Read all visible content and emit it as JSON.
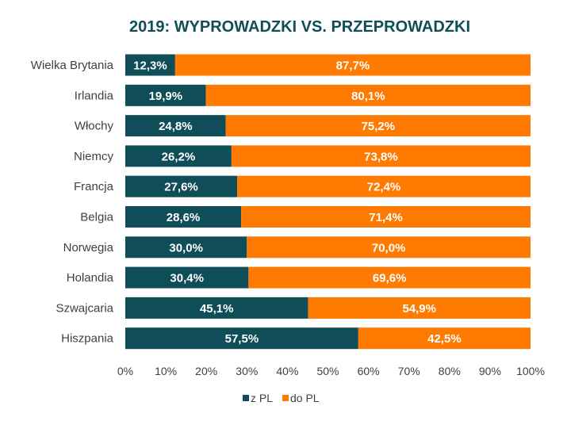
{
  "chart_data": {
    "type": "bar",
    "orientation": "horizontal",
    "stacked": "percent",
    "title": "2019: WYPROWADZKI VS. PRZEPROWADZKI",
    "categories": [
      "Wielka Brytania",
      "Irlandia",
      "Włochy",
      "Niemcy",
      "Francja",
      "Belgia",
      "Norwegia",
      "Holandia",
      "Szwajcaria",
      "Hiszpania"
    ],
    "series": [
      {
        "name": "z PL",
        "color": "#0f4d59",
        "values": [
          12.3,
          19.9,
          24.8,
          26.2,
          27.6,
          28.6,
          30.0,
          30.4,
          45.1,
          57.5
        ],
        "labels": [
          "12,3%",
          "19,9%",
          "24,8%",
          "26,2%",
          "27,6%",
          "28,6%",
          "30,0%",
          "30,4%",
          "45,1%",
          "57,5%"
        ]
      },
      {
        "name": "do PL",
        "color": "#ff7a00",
        "values": [
          87.7,
          80.1,
          75.2,
          73.8,
          72.4,
          71.4,
          70.0,
          69.6,
          54.9,
          42.5
        ],
        "labels": [
          "87,7%",
          "80,1%",
          "75,2%",
          "73,8%",
          "72,4%",
          "71,4%",
          "70,0%",
          "69,6%",
          "54,9%",
          "42,5%"
        ]
      }
    ],
    "xlim": [
      0,
      100
    ],
    "xticks": [
      "0%",
      "10%",
      "20%",
      "30%",
      "40%",
      "50%",
      "60%",
      "70%",
      "80%",
      "90%",
      "100%"
    ],
    "grid": false,
    "legend": "bottom",
    "title_color": "#0f4d59"
  }
}
